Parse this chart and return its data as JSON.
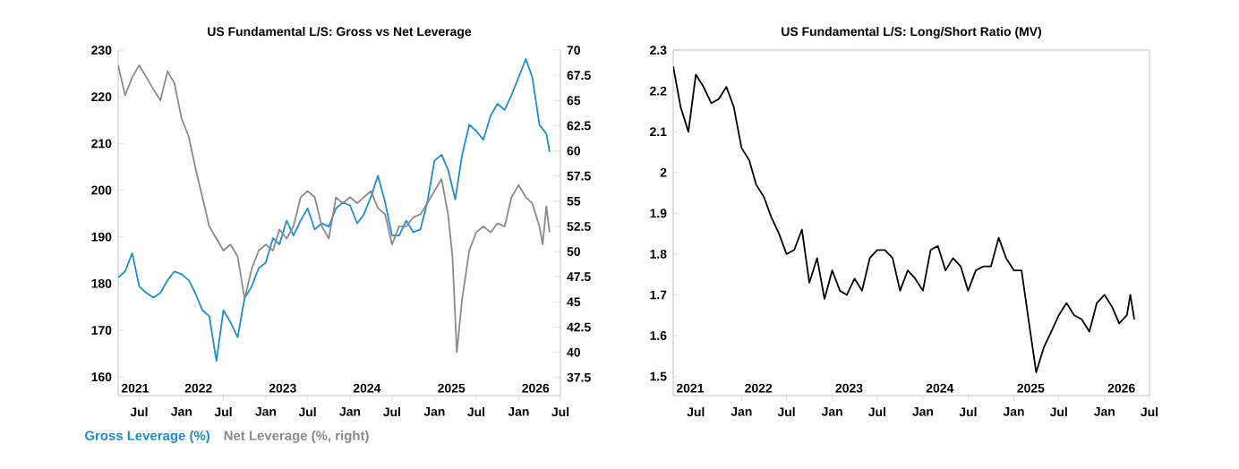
{
  "chart_data": [
    {
      "type": "line",
      "title": "US Fundamental L/S: Gross vs Net Leverage",
      "legend": "bottom",
      "xlim": [
        "2021-04-01",
        "2026-07-01"
      ],
      "xticks": [
        {
          "value": "2021-07-01",
          "label": "Jul"
        },
        {
          "value": "2022-01-01",
          "label": "Jan"
        },
        {
          "value": "2022-07-01",
          "label": "Jul"
        },
        {
          "value": "2023-01-01",
          "label": "Jan"
        },
        {
          "value": "2023-07-01",
          "label": "Jul"
        },
        {
          "value": "2024-01-01",
          "label": "Jan"
        },
        {
          "value": "2024-07-01",
          "label": "Jul"
        },
        {
          "value": "2025-01-01",
          "label": "Jan"
        },
        {
          "value": "2025-07-01",
          "label": "Jul"
        },
        {
          "value": "2026-01-01",
          "label": "Jan"
        },
        {
          "value": "2026-07-01",
          "label": "Jul"
        }
      ],
      "ylim": [
        156,
        230
      ],
      "yticks": [
        160,
        170,
        180,
        190,
        200,
        210,
        220,
        230
      ],
      "annotations": [
        "2021",
        "2022",
        "2023",
        "2024",
        "2025",
        "2026"
      ],
      "y2lim": [
        35.7,
        70
      ],
      "y2ticks": [
        37.5,
        40,
        42.5,
        45,
        47.5,
        50,
        52.5,
        55,
        57.5,
        60,
        62.5,
        65,
        67.5,
        70
      ],
      "series": [
        {
          "name": "Gross Leverage (%)",
          "color": "#1f8ccb",
          "x": [
            "2021-04-01",
            "2021-05-01",
            "2021-06-01",
            "2021-07-01",
            "2021-08-01",
            "2021-09-01",
            "2021-10-01",
            "2021-11-01",
            "2021-12-01",
            "2022-01-01",
            "2022-02-01",
            "2022-03-01",
            "2022-04-01",
            "2022-05-01",
            "2022-06-01",
            "2022-07-01",
            "2022-08-01",
            "2022-09-01",
            "2022-10-01",
            "2022-11-01",
            "2022-12-01",
            "2023-01-01",
            "2023-02-01",
            "2023-03-01",
            "2023-04-01",
            "2023-05-01",
            "2023-06-01",
            "2023-07-01",
            "2023-08-01",
            "2023-09-01",
            "2023-10-01",
            "2023-11-01",
            "2023-12-01",
            "2024-01-01",
            "2024-02-01",
            "2024-03-01",
            "2024-04-01",
            "2024-05-01",
            "2024-06-01",
            "2024-07-01",
            "2024-08-01",
            "2024-09-01",
            "2024-10-01",
            "2024-11-01",
            "2024-12-01",
            "2025-01-01",
            "2025-02-01",
            "2025-03-01",
            "2025-04-01",
            "2025-05-01",
            "2025-06-01",
            "2025-07-01",
            "2025-08-01",
            "2025-09-01",
            "2025-10-01",
            "2025-11-01",
            "2025-12-01",
            "2026-01-01",
            "2026-02-01",
            "2026-03-01",
            "2026-04-01",
            "2026-05-01",
            "2026-05-15"
          ],
          "values": [
            181.3,
            182.6,
            186.5,
            179.4,
            178,
            177,
            178,
            180.7,
            182.6,
            182,
            180.7,
            178,
            174.3,
            173,
            163.4,
            174.3,
            171.7,
            168.5,
            176.9,
            179.4,
            183.3,
            184.5,
            189.7,
            188.4,
            193.5,
            190.3,
            193.5,
            196.1,
            191.6,
            192.9,
            192.2,
            196.1,
            197.4,
            196.7,
            192.9,
            194.8,
            198.6,
            203.1,
            197.4,
            190.3,
            190.3,
            193.5,
            191,
            191.6,
            197.4,
            206.3,
            207.6,
            204.4,
            198,
            207.6,
            214,
            212.7,
            210.8,
            215.9,
            218.5,
            217.2,
            220.4,
            224.2,
            228.1,
            224.2,
            214,
            212.1,
            208.2
          ]
        },
        {
          "name": "Net Leverage (%, right)",
          "color": "#8a8a8a",
          "axis": "y2",
          "x": [
            "2021-04-01",
            "2021-05-01",
            "2021-06-01",
            "2021-07-01",
            "2021-08-01",
            "2021-09-01",
            "2021-10-01",
            "2021-11-01",
            "2021-12-01",
            "2022-01-01",
            "2022-02-01",
            "2022-03-01",
            "2022-04-01",
            "2022-05-01",
            "2022-06-01",
            "2022-07-01",
            "2022-08-01",
            "2022-09-01",
            "2022-10-01",
            "2022-11-01",
            "2022-12-01",
            "2023-01-01",
            "2023-02-01",
            "2023-03-01",
            "2023-04-01",
            "2023-05-01",
            "2023-06-01",
            "2023-07-01",
            "2023-08-01",
            "2023-09-01",
            "2023-10-01",
            "2023-11-01",
            "2023-12-01",
            "2024-01-01",
            "2024-02-01",
            "2024-03-01",
            "2024-04-01",
            "2024-05-01",
            "2024-06-01",
            "2024-07-01",
            "2024-08-01",
            "2024-09-01",
            "2024-10-01",
            "2024-11-01",
            "2024-12-01",
            "2025-01-01",
            "2025-02-01",
            "2025-03-01",
            "2025-03-20",
            "2025-04-08",
            "2025-05-01",
            "2025-06-01",
            "2025-07-01",
            "2025-08-01",
            "2025-09-01",
            "2025-10-01",
            "2025-11-01",
            "2025-12-01",
            "2026-01-01",
            "2026-02-01",
            "2026-03-01",
            "2026-04-01",
            "2026-04-15",
            "2026-05-01",
            "2026-05-15"
          ],
          "values": [
            68.5,
            65.5,
            67.3,
            68.5,
            67.3,
            66.1,
            65,
            67.9,
            66.7,
            63.2,
            61.4,
            58.4,
            55.4,
            52.5,
            51.3,
            50.1,
            50.7,
            49.5,
            45.3,
            48.3,
            50.1,
            50.7,
            50.1,
            52.2,
            51.3,
            52.5,
            55.4,
            56,
            55.4,
            52.5,
            51.3,
            55.4,
            54.8,
            55.4,
            54.8,
            55.4,
            56,
            54.3,
            53.7,
            50.7,
            52.5,
            52.5,
            53.4,
            53.7,
            54.8,
            56,
            57.2,
            53.7,
            49.5,
            40,
            45.3,
            50.1,
            51.9,
            52.5,
            51.9,
            52.8,
            52.5,
            55.4,
            56.6,
            55.4,
            54.8,
            52.5,
            50.7,
            54.5,
            51.9
          ]
        }
      ]
    },
    {
      "type": "line",
      "title": "US Fundamental L/S: Long/Short Ratio (MV)",
      "xlim": [
        "2021-04-01",
        "2026-07-01"
      ],
      "xticks": [
        {
          "value": "2021-07-01",
          "label": "Jul"
        },
        {
          "value": "2022-01-01",
          "label": "Jan"
        },
        {
          "value": "2022-07-01",
          "label": "Jul"
        },
        {
          "value": "2023-01-01",
          "label": "Jan"
        },
        {
          "value": "2023-07-01",
          "label": "Jul"
        },
        {
          "value": "2024-01-01",
          "label": "Jan"
        },
        {
          "value": "2024-07-01",
          "label": "Jul"
        },
        {
          "value": "2025-01-01",
          "label": "Jan"
        },
        {
          "value": "2025-07-01",
          "label": "Jul"
        },
        {
          "value": "2026-01-01",
          "label": "Jan"
        },
        {
          "value": "2026-07-01",
          "label": "Jul"
        }
      ],
      "ylim": [
        1.453,
        2.3
      ],
      "yticks": [
        1.5,
        1.6,
        1.7,
        1.8,
        1.9,
        2,
        2.1,
        2.2,
        2.3
      ],
      "annotations": [
        "2021",
        "2022",
        "2023",
        "2024",
        "2025",
        "2026"
      ],
      "series": [
        {
          "color": "#000000",
          "x": [
            "2021-04-01",
            "2021-05-01",
            "2021-06-01",
            "2021-07-01",
            "2021-08-01",
            "2021-09-01",
            "2021-10-01",
            "2021-11-01",
            "2021-12-01",
            "2022-01-01",
            "2022-02-01",
            "2022-03-01",
            "2022-04-01",
            "2022-05-01",
            "2022-06-01",
            "2022-07-01",
            "2022-08-01",
            "2022-09-01",
            "2022-10-01",
            "2022-11-01",
            "2022-12-01",
            "2023-01-01",
            "2023-02-01",
            "2023-03-01",
            "2023-04-01",
            "2023-05-01",
            "2023-06-01",
            "2023-07-01",
            "2023-08-01",
            "2023-09-01",
            "2023-10-01",
            "2023-11-01",
            "2023-12-01",
            "2024-01-01",
            "2024-02-01",
            "2024-03-01",
            "2024-04-01",
            "2024-05-01",
            "2024-06-01",
            "2024-07-01",
            "2024-08-01",
            "2024-09-01",
            "2024-10-01",
            "2024-11-01",
            "2024-12-01",
            "2025-01-01",
            "2025-02-01",
            "2025-03-01",
            "2025-04-01",
            "2025-05-01",
            "2025-06-01",
            "2025-07-01",
            "2025-08-01",
            "2025-09-01",
            "2025-10-01",
            "2025-11-01",
            "2025-12-01",
            "2026-01-01",
            "2026-02-01",
            "2026-03-01",
            "2026-04-01",
            "2026-04-15",
            "2026-05-01"
          ],
          "values": [
            2.26,
            2.16,
            2.1,
            2.24,
            2.21,
            2.17,
            2.18,
            2.21,
            2.16,
            2.06,
            2.03,
            1.97,
            1.94,
            1.89,
            1.85,
            1.8,
            1.81,
            1.86,
            1.73,
            1.79,
            1.69,
            1.76,
            1.71,
            1.7,
            1.74,
            1.71,
            1.79,
            1.81,
            1.81,
            1.79,
            1.71,
            1.76,
            1.74,
            1.71,
            1.81,
            1.82,
            1.76,
            1.79,
            1.77,
            1.71,
            1.76,
            1.77,
            1.77,
            1.84,
            1.79,
            1.76,
            1.76,
            1.64,
            1.51,
            1.57,
            1.61,
            1.65,
            1.68,
            1.65,
            1.64,
            1.61,
            1.68,
            1.7,
            1.67,
            1.63,
            1.65,
            1.7,
            1.64
          ]
        }
      ]
    }
  ]
}
